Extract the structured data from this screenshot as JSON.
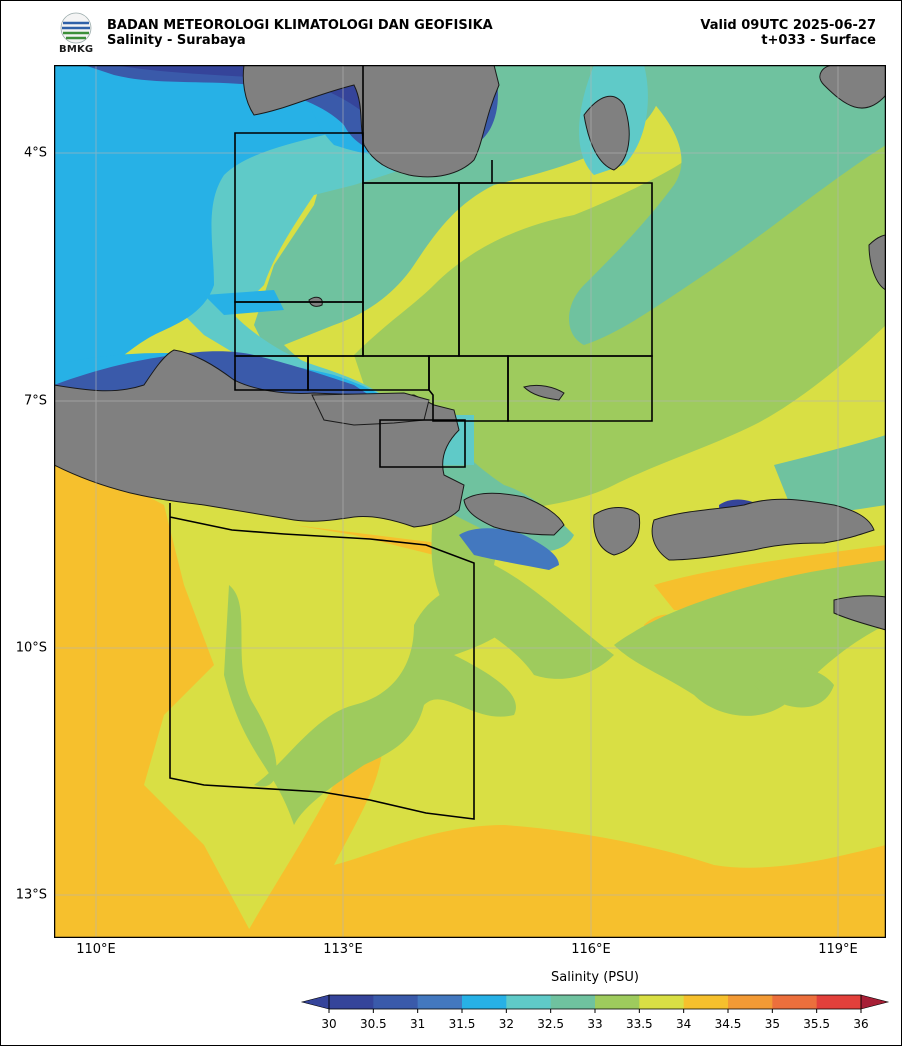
{
  "header": {
    "org_line": "BADAN METEOROLOGI KLIMATOLOGI DAN GEOFISIKA",
    "product_line": "Salinity - Surabaya",
    "valid_line": "Valid 09UTC 2025-06-27",
    "lead_line": "t+033 - Surface",
    "logo_text": "BMKG"
  },
  "map": {
    "lat_labels": [
      "4°S",
      "7°S",
      "10°S",
      "13°S"
    ],
    "lon_labels": [
      "110°E",
      "113°E",
      "116°E",
      "119°E"
    ],
    "land_color": "#808080",
    "grid": true
  },
  "colorbar": {
    "title": "Salinity (PSU)",
    "ticks": [
      "30",
      "30.5",
      "31",
      "31.5",
      "32",
      "32.5",
      "33",
      "33.5",
      "34",
      "34.5",
      "35",
      "35.5",
      "36"
    ],
    "colors": [
      "#35449a",
      "#3a5aaa",
      "#4378bf",
      "#27b1e6",
      "#5fcac8",
      "#6fc29f",
      "#9ecb5d",
      "#d9df44",
      "#f6c02d",
      "#f29a35",
      "#ec6f3c",
      "#e2403b",
      "#cd2b33",
      "#a71f36"
    ],
    "under_color": "#35449a",
    "over_color": "#a71f36"
  }
}
